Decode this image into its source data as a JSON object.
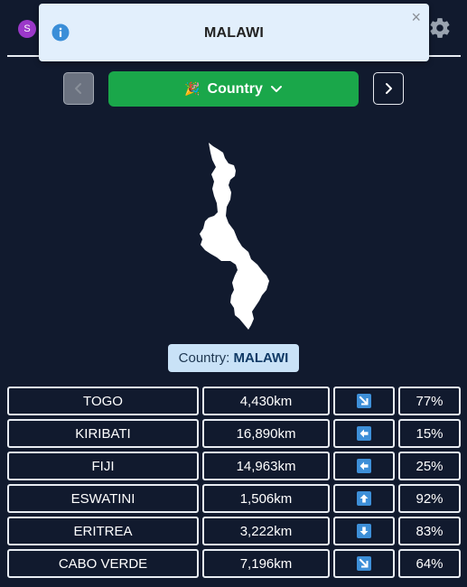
{
  "header": {
    "avatar_letter": "S"
  },
  "toast": {
    "title": "MALAWI",
    "close_glyph": "×",
    "icon": "info-icon"
  },
  "nav": {
    "prev_glyph": "‹",
    "next_glyph": "›",
    "mode_emoji": "🎉",
    "mode_label": "Country",
    "mode_caret": "⌄"
  },
  "answer": {
    "label": "Country:",
    "value": "MALAWI"
  },
  "guesses": [
    {
      "name": "TOGO",
      "distance": "4,430km",
      "direction": "south-east",
      "percent": "77%"
    },
    {
      "name": "KIRIBATI",
      "distance": "16,890km",
      "direction": "west",
      "percent": "15%"
    },
    {
      "name": "FIJI",
      "distance": "14,963km",
      "direction": "west",
      "percent": "25%"
    },
    {
      "name": "ESWATINI",
      "distance": "1,506km",
      "direction": "north",
      "percent": "92%"
    },
    {
      "name": "ERITREA",
      "distance": "3,222km",
      "direction": "south",
      "percent": "83%"
    },
    {
      "name": "CABO VERDE",
      "distance": "7,196km",
      "direction": "south-east",
      "percent": "64%"
    }
  ],
  "colors": {
    "background": "#111a2e",
    "accent_green": "#1aa74a",
    "toast_bg": "#e2effc",
    "arrow_blue": "#3d8fd8"
  }
}
